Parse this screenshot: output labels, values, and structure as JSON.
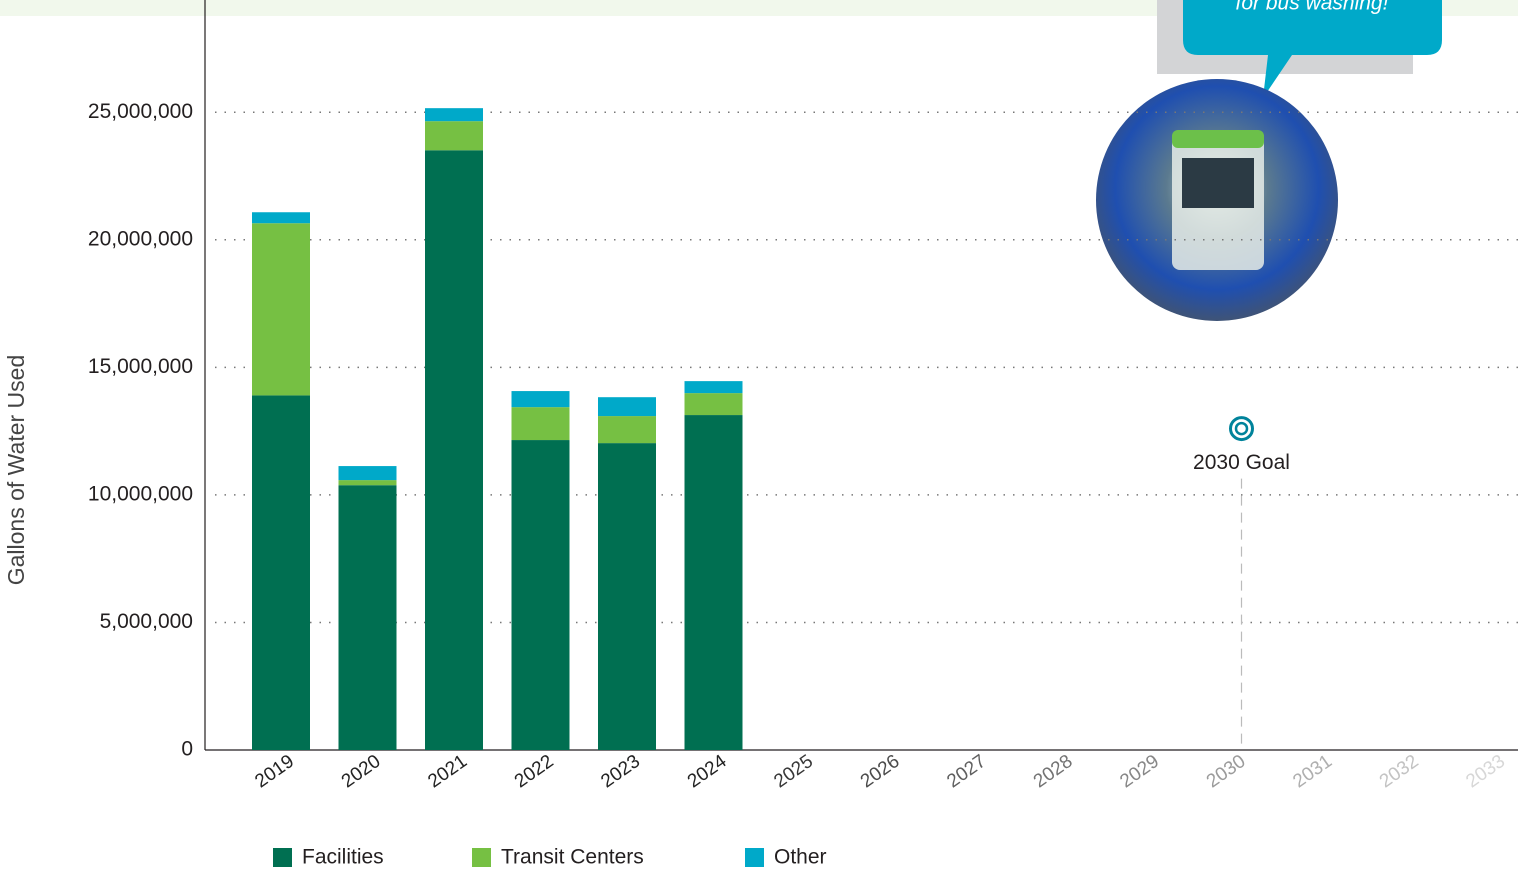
{
  "chart_data": {
    "type": "stacked_bar",
    "y_label": "Gallons of Water Used",
    "categories": [
      "2019",
      "2020",
      "2021",
      "2022",
      "2023",
      "2024",
      "2025",
      "2026",
      "2027",
      "2028",
      "2029",
      "2030",
      "2031",
      "2032",
      "2033"
    ],
    "series": [
      {
        "name": "Facilities",
        "color": "#006f51",
        "values": [
          13900000,
          10380000,
          23510000,
          12150000,
          12030000,
          13130000,
          null,
          null,
          null,
          null,
          null,
          null,
          null,
          null,
          null
        ]
      },
      {
        "name": "Transit Centers",
        "color": "#76c043",
        "values": [
          6750000,
          200000,
          1140000,
          1290000,
          1060000,
          860000,
          null,
          null,
          null,
          null,
          null,
          null,
          null,
          null,
          null
        ]
      },
      {
        "name": "Other",
        "color": "#00a9c9",
        "values": [
          430000,
          550000,
          510000,
          630000,
          740000,
          470000,
          null,
          null,
          null,
          null,
          null,
          null,
          null,
          null,
          null
        ]
      }
    ],
    "ylim": [
      0,
      29400000
    ],
    "yticks": [
      0,
      {
        "value": 5000000,
        "label": "5,000,000"
      },
      {
        "value": 10000000,
        "label": "10,000,000"
      },
      {
        "value": 15000000,
        "label": "15,000,000"
      },
      {
        "value": 20000000,
        "label": "20,000,000"
      },
      {
        "value": 25000000,
        "label": "25,000,000"
      }
    ],
    "grid": true,
    "goal": {
      "category": "2030",
      "value": 12600000,
      "label": "2030 Goal",
      "color": "#00839b"
    },
    "callout": "for bus washing!"
  }
}
